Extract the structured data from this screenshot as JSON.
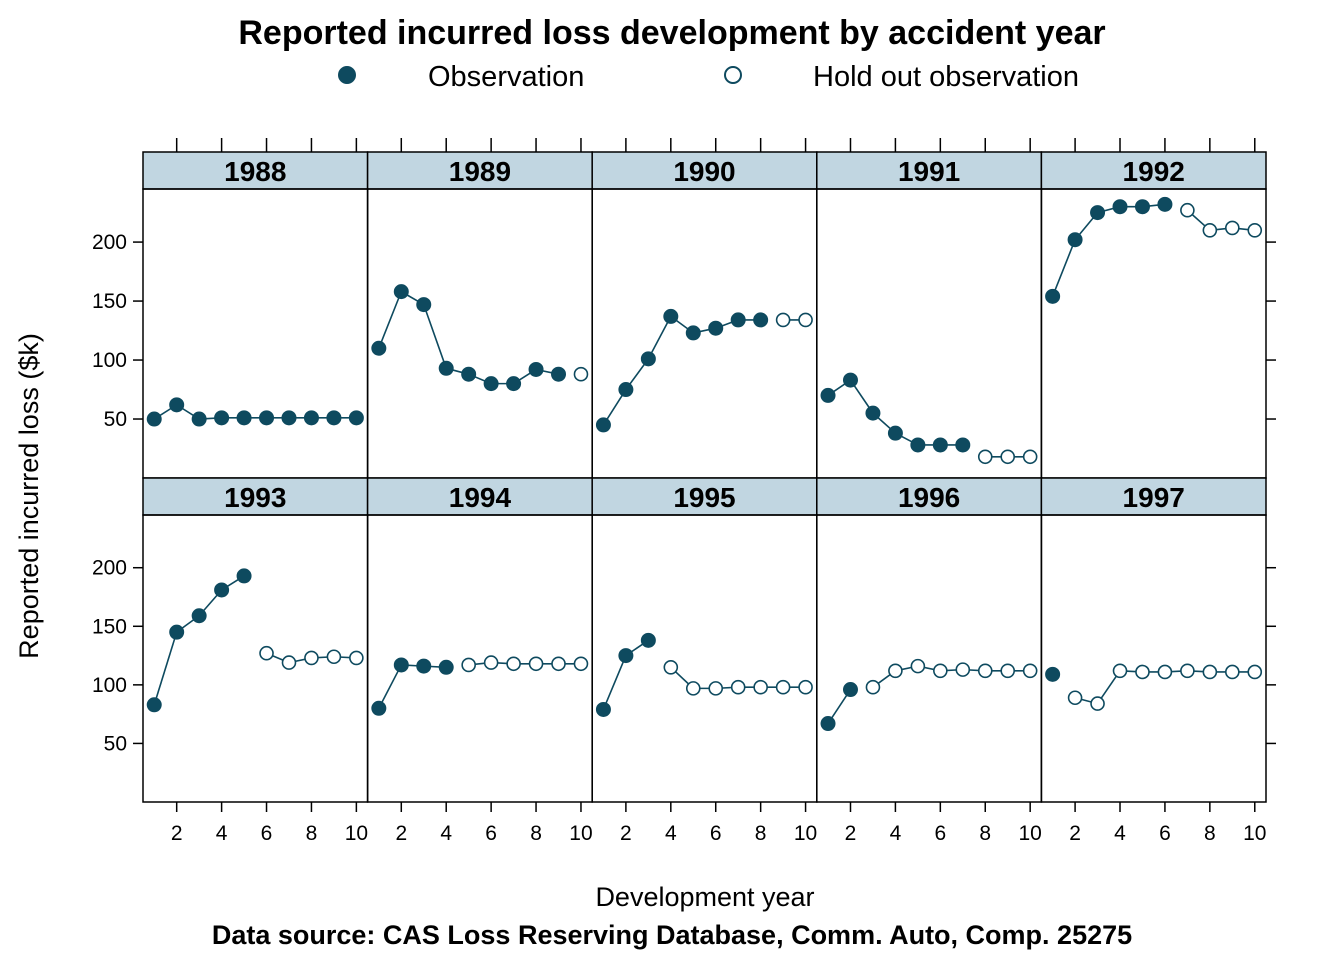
{
  "chart_data": {
    "type": "line",
    "title": "Reported incurred loss development by accident year",
    "xlabel": "Development year",
    "ylabel": "Reported incurred loss ($k)",
    "caption": "Data source: CAS Loss Reserving Database, Comm. Auto, Comp. 25275",
    "legend": [
      {
        "label": "Observation",
        "marker": "filled-circle"
      },
      {
        "label": "Hold out observation",
        "marker": "open-circle"
      }
    ],
    "legend_position": "top",
    "xlim": [
      0.5,
      10.5
    ],
    "ylim": [
      0,
      245
    ],
    "xticks": [
      2,
      4,
      6,
      8,
      10
    ],
    "yticks": [
      50,
      100,
      150,
      200
    ],
    "grid": false,
    "colors": {
      "point": "#0e4a5f",
      "strip": "#c1d6e1",
      "line": "#0e4a5f"
    },
    "panels": [
      {
        "year": "1988",
        "x": [
          1,
          2,
          3,
          4,
          5,
          6,
          7,
          8,
          9,
          10
        ],
        "y": [
          50,
          62,
          50,
          51,
          51,
          51,
          51,
          51,
          51,
          51
        ],
        "holdout": [
          false,
          false,
          false,
          false,
          false,
          false,
          false,
          false,
          false,
          false
        ]
      },
      {
        "year": "1989",
        "x": [
          1,
          2,
          3,
          4,
          5,
          6,
          7,
          8,
          9,
          10
        ],
        "y": [
          110,
          158,
          147,
          93,
          88,
          80,
          80,
          92,
          88,
          88
        ],
        "holdout": [
          false,
          false,
          false,
          false,
          false,
          false,
          false,
          false,
          false,
          true
        ]
      },
      {
        "year": "1990",
        "x": [
          1,
          2,
          3,
          4,
          5,
          6,
          7,
          8,
          9,
          10
        ],
        "y": [
          45,
          75,
          101,
          137,
          123,
          127,
          134,
          134,
          134,
          134
        ],
        "holdout": [
          false,
          false,
          false,
          false,
          false,
          false,
          false,
          false,
          true,
          true
        ]
      },
      {
        "year": "1991",
        "x": [
          1,
          2,
          3,
          4,
          5,
          6,
          7,
          8,
          9,
          10
        ],
        "y": [
          70,
          83,
          55,
          38,
          28,
          28,
          28,
          18,
          18,
          18
        ],
        "holdout": [
          false,
          false,
          false,
          false,
          false,
          false,
          false,
          true,
          true,
          true
        ]
      },
      {
        "year": "1992",
        "x": [
          1,
          2,
          3,
          4,
          5,
          6,
          7,
          8,
          9,
          10
        ],
        "y": [
          154,
          202,
          225,
          230,
          230,
          232,
          227,
          210,
          212,
          210
        ],
        "holdout": [
          false,
          false,
          false,
          false,
          false,
          false,
          true,
          true,
          true,
          true
        ]
      },
      {
        "year": "1993",
        "x": [
          1,
          2,
          3,
          4,
          5,
          6,
          7,
          8,
          9,
          10
        ],
        "y": [
          83,
          145,
          159,
          181,
          193,
          127,
          119,
          123,
          124,
          123
        ],
        "holdout": [
          false,
          false,
          false,
          false,
          false,
          true,
          true,
          true,
          true,
          true
        ]
      },
      {
        "year": "1994",
        "x": [
          1,
          2,
          3,
          4,
          5,
          6,
          7,
          8,
          9,
          10
        ],
        "y": [
          80,
          117,
          116,
          115,
          117,
          119,
          118,
          118,
          118,
          118
        ],
        "holdout": [
          false,
          false,
          false,
          false,
          true,
          true,
          true,
          true,
          true,
          true
        ]
      },
      {
        "year": "1995",
        "x": [
          1,
          2,
          3,
          4,
          5,
          6,
          7,
          8,
          9,
          10
        ],
        "y": [
          79,
          125,
          138,
          115,
          97,
          97,
          98,
          98,
          98,
          98
        ],
        "holdout": [
          false,
          false,
          false,
          true,
          true,
          true,
          true,
          true,
          true,
          true
        ]
      },
      {
        "year": "1996",
        "x": [
          1,
          2,
          3,
          4,
          5,
          6,
          7,
          8,
          9,
          10
        ],
        "y": [
          67,
          96,
          98,
          112,
          116,
          112,
          113,
          112,
          112,
          112
        ],
        "holdout": [
          false,
          false,
          true,
          true,
          true,
          true,
          true,
          true,
          true,
          true
        ]
      },
      {
        "year": "1997",
        "x": [
          1,
          2,
          3,
          4,
          5,
          6,
          7,
          8,
          9,
          10
        ],
        "y": [
          109,
          89,
          84,
          112,
          111,
          111,
          112,
          111,
          111,
          111
        ],
        "holdout": [
          false,
          true,
          true,
          true,
          true,
          true,
          true,
          true,
          true,
          true
        ]
      }
    ]
  }
}
